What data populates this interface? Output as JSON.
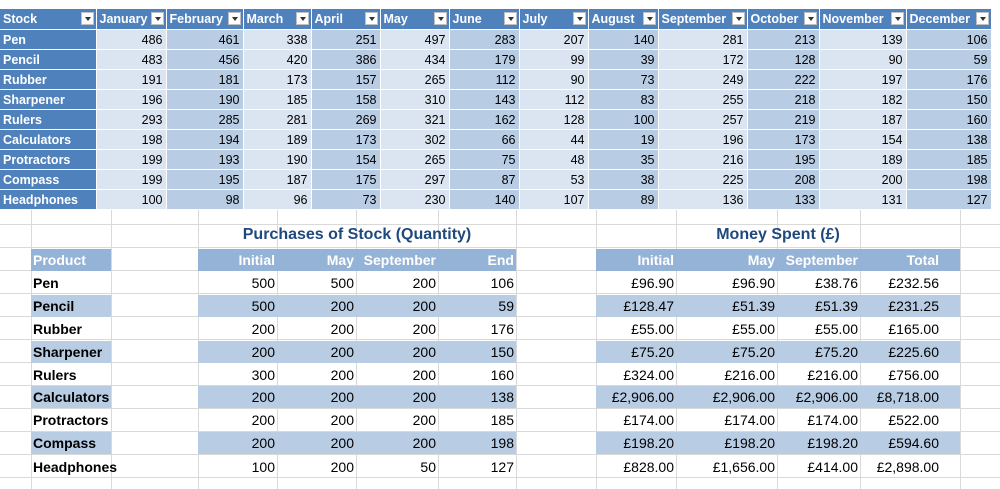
{
  "stock_table": {
    "headers": [
      "Stock",
      "January",
      "February",
      "March",
      "April",
      "May",
      "June",
      "July",
      "August",
      "September",
      "October",
      "November",
      "December"
    ],
    "rows": [
      {
        "item": "Pen",
        "values": [
          "486",
          "461",
          "338",
          "251",
          "497",
          "283",
          "207",
          "140",
          "281",
          "213",
          "139",
          "106"
        ]
      },
      {
        "item": "Pencil",
        "values": [
          "483",
          "456",
          "420",
          "386",
          "434",
          "179",
          "99",
          "39",
          "172",
          "128",
          "90",
          "59"
        ]
      },
      {
        "item": "Rubber",
        "values": [
          "191",
          "181",
          "173",
          "157",
          "265",
          "112",
          "90",
          "73",
          "249",
          "222",
          "197",
          "176"
        ]
      },
      {
        "item": "Sharpener",
        "values": [
          "196",
          "190",
          "185",
          "158",
          "310",
          "143",
          "112",
          "83",
          "255",
          "218",
          "182",
          "150"
        ]
      },
      {
        "item": "Rulers",
        "values": [
          "293",
          "285",
          "281",
          "269",
          "321",
          "162",
          "128",
          "100",
          "257",
          "219",
          "187",
          "160"
        ]
      },
      {
        "item": "Calculators",
        "values": [
          "198",
          "194",
          "189",
          "173",
          "302",
          "66",
          "44",
          "19",
          "196",
          "173",
          "154",
          "138"
        ]
      },
      {
        "item": "Protractors",
        "values": [
          "199",
          "193",
          "190",
          "154",
          "265",
          "75",
          "48",
          "35",
          "216",
          "195",
          "189",
          "185"
        ]
      },
      {
        "item": "Compass",
        "values": [
          "199",
          "195",
          "187",
          "175",
          "297",
          "87",
          "53",
          "38",
          "225",
          "208",
          "200",
          "198"
        ]
      },
      {
        "item": "Headphones",
        "values": [
          "100",
          "98",
          "96",
          "73",
          "230",
          "140",
          "107",
          "89",
          "136",
          "133",
          "131",
          "127"
        ]
      }
    ]
  },
  "purchases": {
    "title": "Purchases of  Stock (Quantity)",
    "product_label": "Product",
    "columns": [
      "Initial",
      "May",
      "September",
      "End"
    ]
  },
  "money": {
    "title": "Money Spent (£)",
    "columns": [
      "Initial",
      "May",
      "September",
      "Total"
    ]
  },
  "products": [
    {
      "name": "Pen",
      "qty": [
        "500",
        "500",
        "200",
        "106"
      ],
      "money": [
        "£96.90",
        "£96.90",
        "£38.76",
        "£232.56"
      ]
    },
    {
      "name": "Pencil",
      "qty": [
        "500",
        "200",
        "200",
        "59"
      ],
      "money": [
        "£128.47",
        "£51.39",
        "£51.39",
        "£231.25"
      ]
    },
    {
      "name": "Rubber",
      "qty": [
        "200",
        "200",
        "200",
        "176"
      ],
      "money": [
        "£55.00",
        "£55.00",
        "£55.00",
        "£165.00"
      ]
    },
    {
      "name": "Sharpener",
      "qty": [
        "200",
        "200",
        "200",
        "150"
      ],
      "money": [
        "£75.20",
        "£75.20",
        "£75.20",
        "£225.60"
      ]
    },
    {
      "name": "Rulers",
      "qty": [
        "300",
        "200",
        "200",
        "160"
      ],
      "money": [
        "£324.00",
        "£216.00",
        "£216.00",
        "£756.00"
      ]
    },
    {
      "name": "Calculators",
      "qty": [
        "200",
        "200",
        "200",
        "138"
      ],
      "money": [
        "£2,906.00",
        "£2,906.00",
        "£2,906.00",
        "£8,718.00"
      ]
    },
    {
      "name": "Protractors",
      "qty": [
        "200",
        "200",
        "200",
        "185"
      ],
      "money": [
        "£174.00",
        "£174.00",
        "£174.00",
        "£522.00"
      ]
    },
    {
      "name": "Compass",
      "qty": [
        "200",
        "200",
        "200",
        "198"
      ],
      "money": [
        "£198.20",
        "£198.20",
        "£198.20",
        "£594.60"
      ]
    },
    {
      "name": "Headphones",
      "qty": [
        "100",
        "200",
        "50",
        "127"
      ],
      "money": [
        "£828.00",
        "£1,656.00",
        "£414.00",
        "£2,898.00"
      ]
    }
  ],
  "colors": {
    "header": "#4f81bd",
    "band_light": "#dbe5f1",
    "band_mid": "#b8cce4",
    "section_header": "#95b3d7",
    "title": "#1f497d"
  },
  "icons": {
    "filter": "filter-dropdown-icon"
  }
}
